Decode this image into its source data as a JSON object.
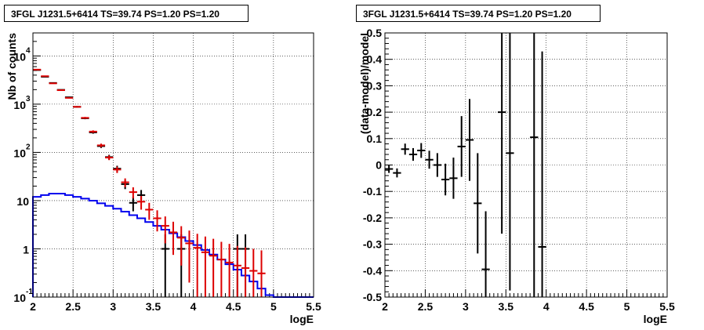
{
  "chart_data": [
    {
      "type": "histogram",
      "title": "3FGL J1231.5+6414 TS=39.74 PS=1.20 PS=1.20",
      "xlabel": "logE",
      "ylabel": "Nb of counts",
      "xlim": [
        2,
        5.5
      ],
      "ylim": [
        0.1,
        30000
      ],
      "yscale": "log",
      "grid": true,
      "x_ticks": [
        "2",
        "2.5",
        "3",
        "3.5",
        "4",
        "4.5",
        "5",
        "5.5"
      ],
      "y_ticks": [
        {
          "value": 0.1,
          "label": "10",
          "exp": "-1"
        },
        {
          "value": 1,
          "label": "1",
          "exp": ""
        },
        {
          "value": 10,
          "label": "10",
          "exp": ""
        },
        {
          "value": 100,
          "label": "10",
          "exp": "2"
        },
        {
          "value": 1000,
          "label": "10",
          "exp": "3"
        },
        {
          "value": 10000,
          "label": "10",
          "exp": "4"
        }
      ],
      "bin_width": 0.1,
      "series": [
        {
          "color": "#0000ee",
          "style": "step",
          "x_lo": [
            2.0,
            2.1,
            2.2,
            2.3,
            2.4,
            2.5,
            2.6,
            2.7,
            2.8,
            2.9,
            3.0,
            3.1,
            3.2,
            3.3,
            3.4,
            3.5,
            3.6,
            3.7,
            3.8,
            3.9,
            4.0,
            4.1,
            4.2,
            4.3,
            4.4,
            4.5,
            4.6,
            4.7,
            4.8,
            4.9,
            5.0,
            5.1,
            5.2,
            5.3,
            5.4
          ],
          "values": [
            12,
            13,
            14,
            14,
            13,
            12,
            11,
            10,
            8.8,
            7.8,
            6.8,
            5.9,
            5.0,
            4.3,
            3.6,
            3.0,
            2.5,
            2.1,
            1.75,
            1.45,
            1.2,
            0.95,
            0.76,
            0.6,
            0.48,
            0.37,
            0.28,
            0.21,
            0.15,
            0.11,
            0.1,
            0.1,
            0.1,
            0.1,
            0.1
          ]
        },
        {
          "color": "#dd0000",
          "style": "error",
          "x": [
            2.05,
            2.15,
            2.25,
            2.35,
            2.45,
            2.55,
            2.65,
            2.75,
            2.85,
            2.95,
            3.05,
            3.15,
            3.25,
            3.35,
            3.45,
            3.55,
            3.65,
            3.75,
            3.85,
            3.95,
            4.05,
            4.15,
            4.25,
            4.35,
            4.45,
            4.55,
            4.65,
            4.75,
            4.85
          ],
          "values": [
            5200,
            3800,
            2700,
            1950,
            1350,
            880,
            520,
            270,
            140,
            78,
            44,
            24,
            15,
            9.5,
            6.5,
            4.3,
            3.0,
            2.2,
            1.7,
            1.3,
            1.05,
            0.85,
            0.72,
            0.6,
            0.52,
            0.45,
            0.4,
            0.35,
            0.31
          ],
          "err_low": [
            72,
            62,
            52,
            44,
            37,
            30,
            23,
            16.5,
            11.8,
            8.8,
            6.6,
            4.9,
            3.9,
            3.0,
            2.5,
            2.0,
            1.7,
            1.45,
            1.25,
            1.1,
            0.95,
            0.75,
            0.62,
            0.5,
            0.42,
            0.35,
            0.3,
            0.25,
            0.21
          ],
          "err_high": [
            72,
            62,
            52,
            44,
            37,
            30,
            23,
            16.5,
            11.8,
            8.8,
            6.6,
            4.9,
            3.9,
            3.0,
            2.5,
            2.0,
            1.7,
            1.45,
            1.25,
            1.1,
            1.0,
            0.95,
            0.9,
            0.8,
            0.75,
            0.7,
            0.68,
            0.65,
            0.62
          ]
        },
        {
          "color": "#000000",
          "style": "error",
          "x": [
            2.05,
            2.15,
            2.25,
            2.35,
            2.45,
            2.55,
            2.65,
            2.75,
            2.85,
            2.95,
            3.05,
            3.15,
            3.25,
            3.35,
            3.65,
            3.85,
            4.55,
            4.65
          ],
          "values": [
            5100,
            3700,
            2750,
            1980,
            1390,
            880,
            510,
            260,
            135,
            80,
            46,
            22,
            9,
            13,
            1,
            1,
            1,
            1
          ],
          "err_low": [
            71,
            61,
            52,
            44,
            37,
            30,
            23,
            16,
            11.6,
            9,
            6.8,
            4.7,
            3,
            3.6,
            0.95,
            0.95,
            0.95,
            0.95
          ],
          "err_high": [
            71,
            61,
            52,
            44,
            37,
            30,
            23,
            16,
            11.6,
            9,
            6.8,
            4.7,
            3,
            3.6,
            1.0,
            1.0,
            1.0,
            1.0
          ]
        }
      ]
    },
    {
      "type": "scatter",
      "title": "3FGL J1231.5+6414 TS=39.74 PS=1.20 PS=1.20",
      "xlabel": "logE",
      "ylabel": "(data-model)/model",
      "xlim": [
        2,
        5.5
      ],
      "ylim": [
        -0.5,
        0.5
      ],
      "grid": true,
      "x_ticks": [
        "2",
        "2.5",
        "3",
        "3.5",
        "4",
        "4.5",
        "5",
        "5.5"
      ],
      "y_ticks": [
        "-0.5",
        "-0.4",
        "-0.3",
        "-0.2",
        "-0.1",
        "0",
        "0.1",
        "0.2",
        "0.3",
        "0.4",
        "0.5"
      ],
      "series": [
        {
          "color": "#000000",
          "x": [
            2.05,
            2.15,
            2.25,
            2.35,
            2.45,
            2.55,
            2.65,
            2.75,
            2.85,
            2.95,
            3.05,
            3.15,
            3.25,
            3.45,
            3.55,
            3.85,
            3.95
          ],
          "y": [
            -0.015,
            -0.03,
            0.06,
            0.04,
            0.055,
            0.02,
            0.0,
            -0.055,
            -0.05,
            0.07,
            0.095,
            -0.145,
            -0.395,
            0.2,
            0.045,
            0.105,
            -0.31
          ],
          "err": [
            0.015,
            0.017,
            0.021,
            0.024,
            0.028,
            0.034,
            0.045,
            0.06,
            0.078,
            0.115,
            0.155,
            0.19,
            0.22,
            0.46,
            0.52,
            0.65,
            0.74
          ]
        }
      ]
    }
  ]
}
